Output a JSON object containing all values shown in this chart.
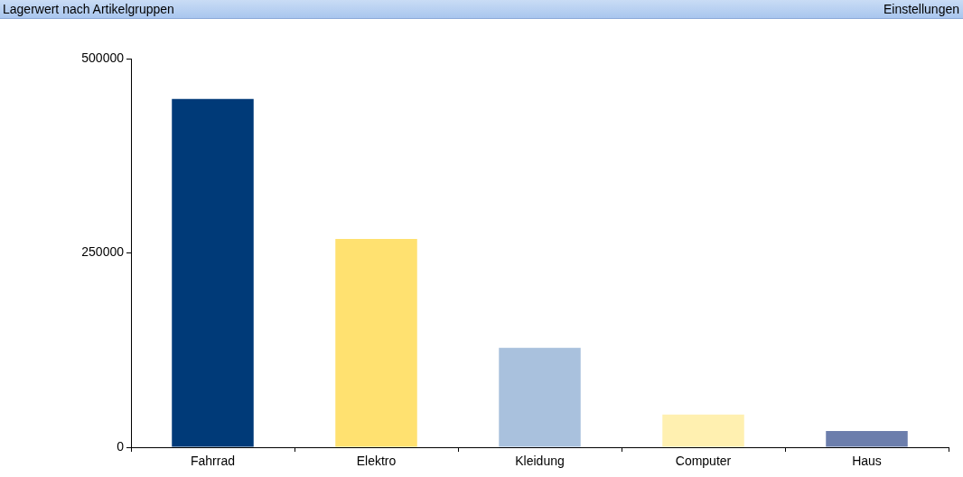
{
  "chart_data": {
    "type": "bar",
    "title": "Lagerwert nach Artikelgruppen",
    "annotations": [
      "Einstellungen"
    ],
    "categories": [
      "Fahrrad",
      "Elektro",
      "Kleidung",
      "Computer",
      "Haus"
    ],
    "values": [
      448000,
      268000,
      128000,
      42000,
      21000
    ],
    "colors": [
      "#003a78",
      "#ffe170",
      "#a9c1dd",
      "#fff0b0",
      "#6c7eac"
    ],
    "ylim": [
      0,
      500000
    ],
    "yticks": [
      0,
      250000,
      500000
    ],
    "grid": false,
    "legend": false
  }
}
